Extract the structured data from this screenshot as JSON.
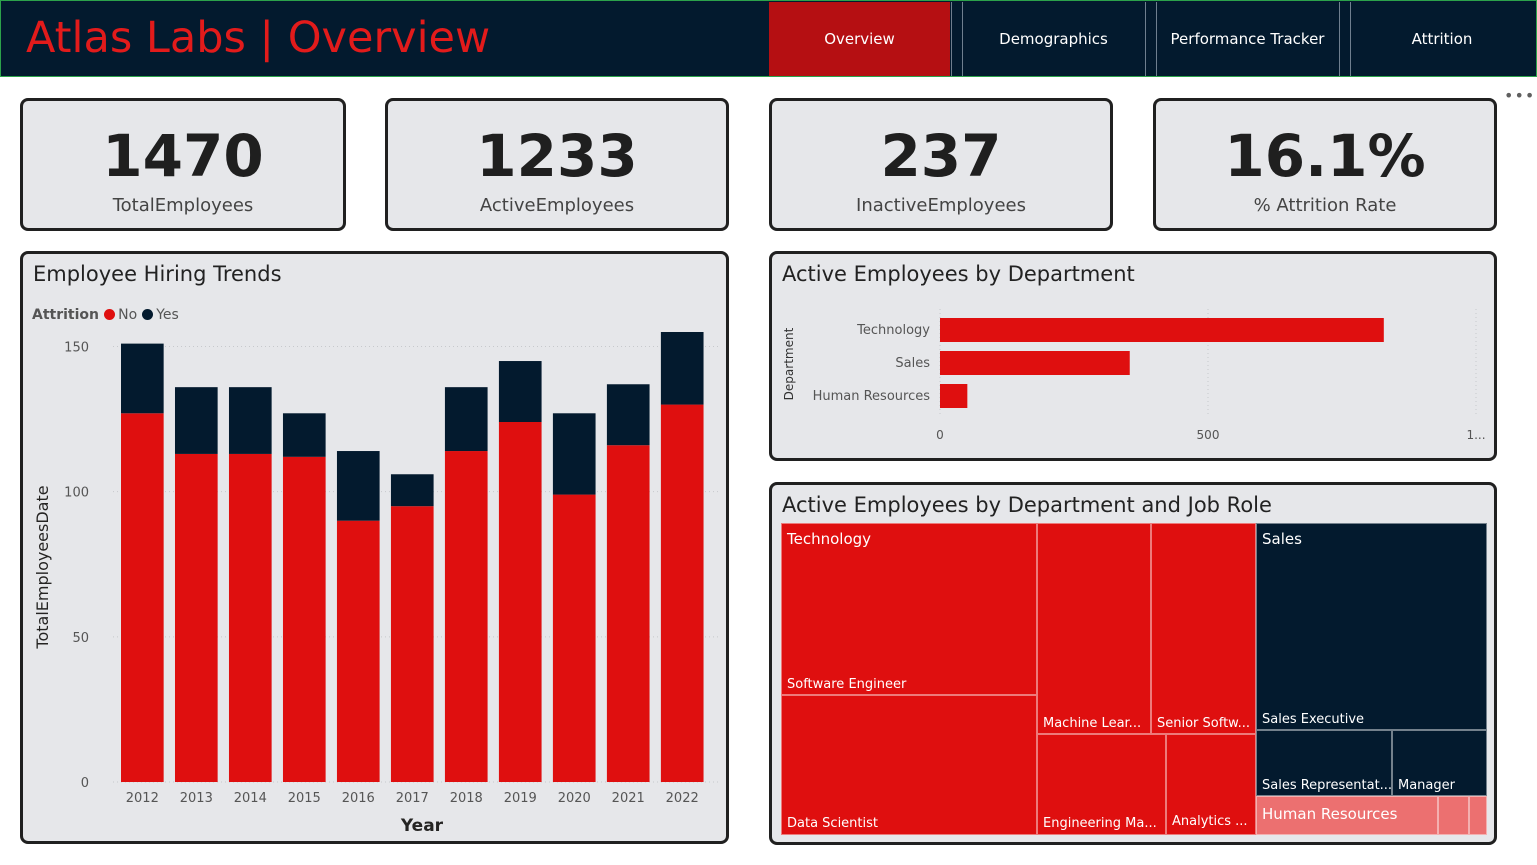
{
  "header": {
    "title": "Atlas Labs | Overview",
    "tabs": [
      {
        "label": "Overview",
        "active": true
      },
      {
        "label": "Demographics",
        "active": false
      },
      {
        "label": "Performance Tracker",
        "active": false
      },
      {
        "label": "Attrition",
        "active": false
      }
    ]
  },
  "more_icon": "more-options-icon",
  "kpis": [
    {
      "value": "1470",
      "label": "TotalEmployees"
    },
    {
      "value": "1233",
      "label": "ActiveEmployees"
    },
    {
      "value": "237",
      "label": "InactiveEmployees"
    },
    {
      "value": "16.1%",
      "label": "% Attrition Rate"
    }
  ],
  "colors": {
    "no": "#df0f0f",
    "yes": "#031a2e",
    "hr": "#ec7070"
  },
  "chart_data": [
    {
      "type": "bar",
      "stacked": true,
      "title": "Employee Hiring Trends",
      "legend_title": "Attrition",
      "legend_position": "top-left",
      "xlabel": "Year",
      "ylabel": "TotalEmployeesDate",
      "categories": [
        "2012",
        "2013",
        "2014",
        "2015",
        "2016",
        "2017",
        "2018",
        "2019",
        "2020",
        "2021",
        "2022"
      ],
      "series": [
        {
          "name": "No",
          "values": [
            127,
            113,
            113,
            112,
            90,
            95,
            114,
            124,
            99,
            116,
            130
          ]
        },
        {
          "name": "Yes",
          "values": [
            24,
            23,
            23,
            15,
            24,
            11,
            22,
            21,
            28,
            21,
            25
          ]
        }
      ],
      "ylim": [
        0,
        155
      ],
      "yticks": [
        "0",
        "50",
        "100",
        "150"
      ],
      "grid": true
    },
    {
      "type": "bar",
      "orientation": "horizontal",
      "title": "Active Employees by Department",
      "ylabel": "Department",
      "categories": [
        "Technology",
        "Sales",
        "Human Resources"
      ],
      "values": [
        828,
        354,
        51
      ],
      "xlim": [
        0,
        1000
      ],
      "xticks": [
        "0",
        "500",
        "1..."
      ],
      "grid": true
    },
    {
      "type": "treemap",
      "title": "Active Employees by Department and Job Role",
      "groups": [
        {
          "name": "Technology",
          "roles": [
            "Software Engineer",
            "Data Scientist",
            "Machine Lear...",
            "Senior Softw...",
            "Engineering Ma...",
            "Analytics ..."
          ]
        },
        {
          "name": "Sales",
          "roles": [
            "Sales Executive",
            "Sales Representat...",
            "Manager"
          ]
        },
        {
          "name": "Human Resources",
          "roles": []
        }
      ]
    }
  ]
}
